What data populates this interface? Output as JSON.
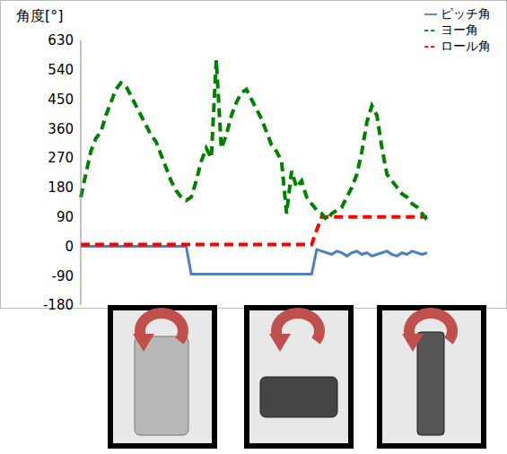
{
  "chart_data": {
    "type": "line",
    "y_label": "角度[°]",
    "categories": [
      null,
      null,
      null,
      null,
      null,
      null,
      null,
      null,
      null,
      null,
      null,
      null,
      null,
      null,
      null,
      null,
      null,
      null,
      null,
      null,
      null,
      null,
      null,
      null,
      null,
      null,
      null,
      null,
      null,
      null,
      null,
      null,
      null,
      null,
      null,
      null,
      null,
      null,
      null,
      null,
      null,
      null,
      null,
      null,
      null,
      null,
      null,
      null,
      null,
      null,
      null,
      null,
      null,
      null,
      null,
      null,
      null,
      null,
      null,
      null,
      null,
      null,
      null,
      null,
      null,
      null,
      null,
      null,
      null,
      null
    ],
    "series": [
      {
        "name": "ピッチ角",
        "color": "#4f81bd",
        "line_style": "solid",
        "values": [
          0,
          0,
          0,
          0,
          0,
          0,
          0,
          0,
          0,
          0,
          0,
          0,
          0,
          0,
          0,
          0,
          0,
          0,
          0,
          0,
          0,
          0,
          -85,
          -85,
          -85,
          -85,
          -85,
          -85,
          -85,
          -85,
          -85,
          -85,
          -85,
          -85,
          -85,
          -85,
          -85,
          -85,
          -85,
          -85,
          -85,
          -85,
          -85,
          -85,
          -85,
          -85,
          -85,
          -10,
          -15,
          -20,
          -25,
          -15,
          -20,
          -30,
          -20,
          -15,
          -25,
          -20,
          -30,
          -25,
          -20,
          -15,
          -25,
          -30,
          -20,
          -25,
          -15,
          -20,
          -25,
          -20
        ]
      },
      {
        "name": "ロール角",
        "color": "#ff0000",
        "line_style": "dashed",
        "values": [
          5,
          5,
          5,
          5,
          5,
          5,
          5,
          5,
          5,
          5,
          5,
          5,
          5,
          5,
          5,
          5,
          5,
          5,
          5,
          5,
          5,
          5,
          5,
          5,
          5,
          5,
          5,
          5,
          5,
          5,
          5,
          5,
          5,
          5,
          5,
          5,
          5,
          5,
          5,
          5,
          5,
          5,
          5,
          5,
          5,
          5,
          5,
          50,
          90,
          90,
          90,
          90,
          90,
          90,
          90,
          90,
          90,
          90,
          90,
          90,
          90,
          90,
          90,
          90,
          90,
          90,
          90,
          90,
          90,
          90
        ]
      },
      {
        "name": "ヨー角",
        "color": "#008000",
        "line_style": "dashed",
        "values": [
          150,
          220,
          290,
          330,
          350,
          400,
          440,
          480,
          500,
          490,
          460,
          430,
          400,
          370,
          340,
          320,
          280,
          240,
          200,
          170,
          150,
          140,
          150,
          200,
          260,
          300,
          270,
          570,
          300,
          340,
          400,
          440,
          470,
          480,
          450,
          420,
          390,
          350,
          310,
          290,
          260,
          100,
          230,
          180,
          200,
          150,
          130,
          110,
          100,
          80,
          100,
          110,
          120,
          150,
          180,
          220,
          290,
          380,
          430,
          400,
          300,
          220,
          200,
          180,
          160,
          150,
          130,
          120,
          100,
          80
        ]
      }
    ],
    "ylim": [
      -180,
      630
    ],
    "yticks": [
      -180,
      -90,
      0,
      90,
      180,
      270,
      360,
      450,
      540,
      630
    ],
    "grid": false,
    "legend": "upper right",
    "tick_labels": "y",
    "marker": "none"
  }
}
